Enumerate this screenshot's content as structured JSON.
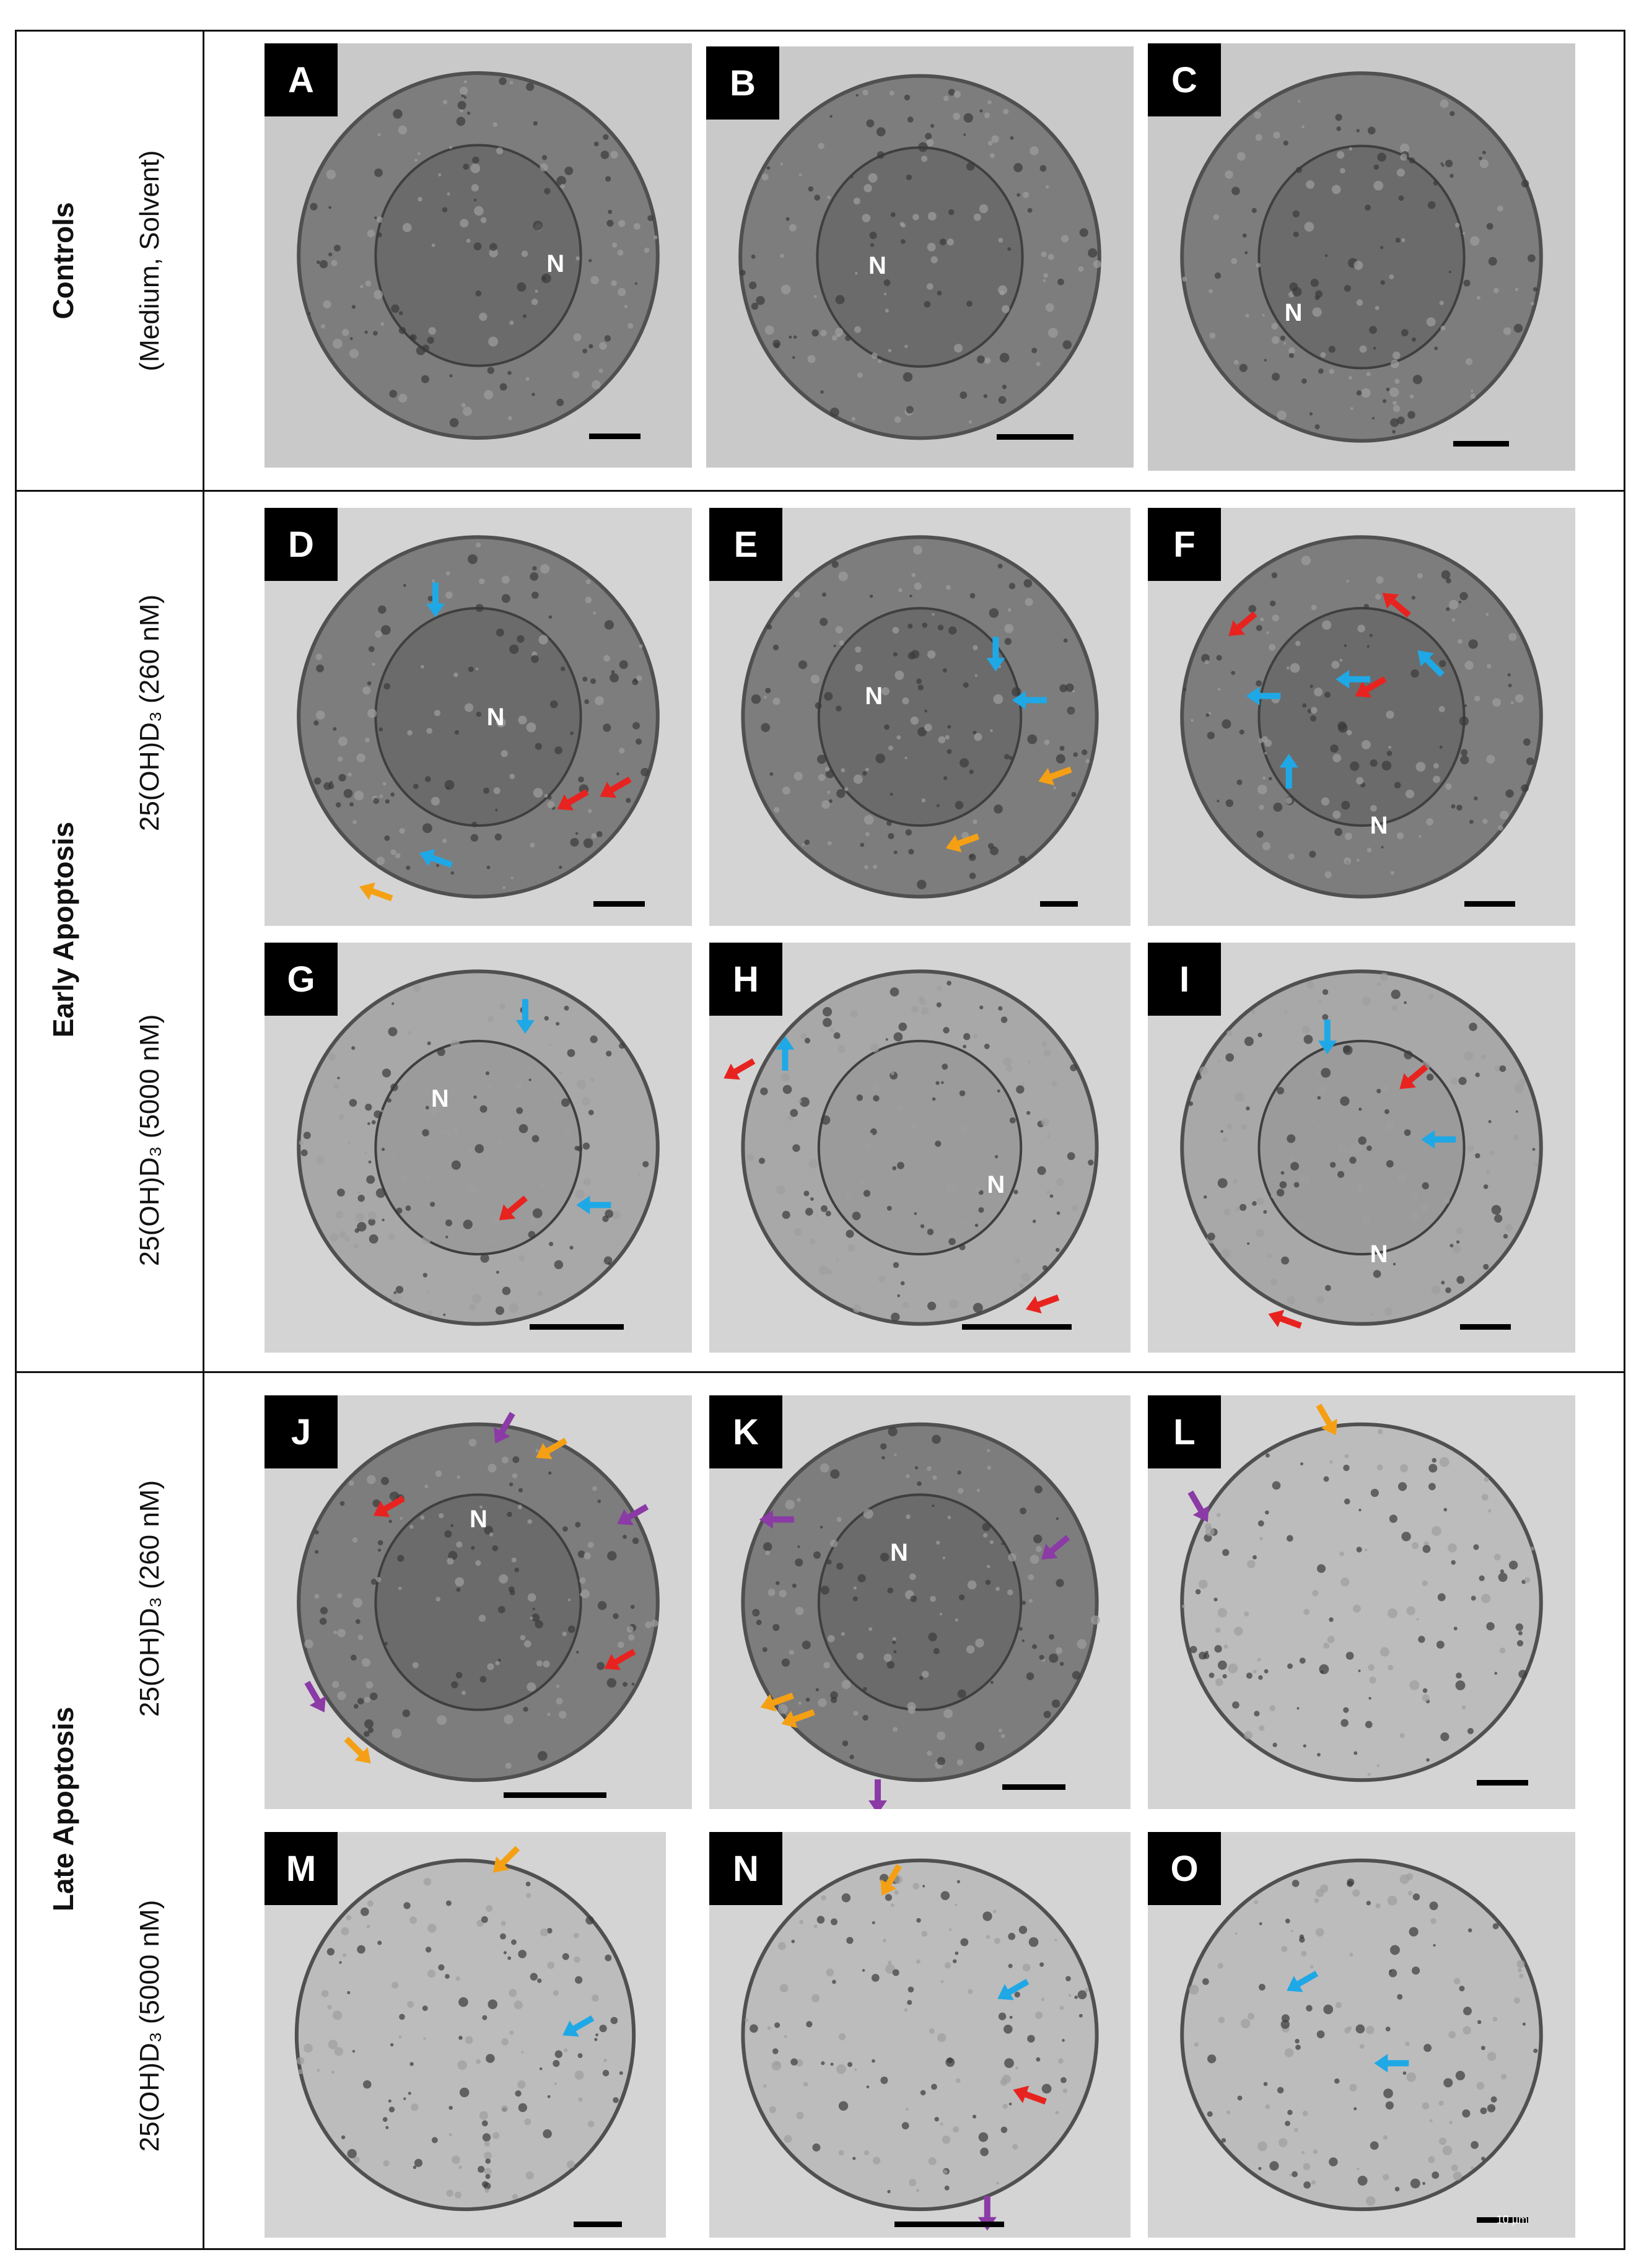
{
  "rows": [
    {
      "main": "Controls",
      "sub": "(Medium,  Solvent)"
    },
    {
      "main": "Early Apoptosis",
      "sub_a": "25(OH)D₃ (260 nM)",
      "sub_b": "25(OH)D₃ (5000 nM)"
    },
    {
      "main": "Late Apoptosis",
      "sub_a": "25(OH)D₃ (260 nM)",
      "sub_b": "25(OH)D₃ (5000 nM)"
    }
  ],
  "panels": [
    {
      "letter": "A",
      "nucleus": "N",
      "arrows": []
    },
    {
      "letter": "B",
      "nucleus": "N",
      "arrows": []
    },
    {
      "letter": "C",
      "nucleus": "N",
      "arrows": []
    },
    {
      "letter": "D",
      "nucleus": "N",
      "arrows": [
        "blue",
        "blue",
        "red",
        "red",
        "orange"
      ]
    },
    {
      "letter": "E",
      "nucleus": "N",
      "arrows": [
        "blue",
        "blue",
        "orange",
        "orange"
      ]
    },
    {
      "letter": "F",
      "nucleus": "N",
      "arrows": [
        "red",
        "red",
        "red",
        "blue",
        "blue",
        "blue",
        "blue"
      ]
    },
    {
      "letter": "G",
      "nucleus": "N",
      "arrows": [
        "blue",
        "red",
        "blue"
      ]
    },
    {
      "letter": "H",
      "nucleus": "N",
      "arrows": [
        "red",
        "blue",
        "red"
      ]
    },
    {
      "letter": "I",
      "nucleus": "N",
      "arrows": [
        "blue",
        "red",
        "blue",
        "red"
      ]
    },
    {
      "letter": "J",
      "nucleus": "N",
      "arrows": [
        "purple",
        "orange",
        "purple",
        "red",
        "red",
        "purple",
        "orange"
      ]
    },
    {
      "letter": "K",
      "nucleus": "N",
      "arrows": [
        "purple",
        "purple",
        "orange",
        "orange",
        "purple"
      ]
    },
    {
      "letter": "L",
      "nucleus": "",
      "arrows": [
        "orange",
        "purple"
      ]
    },
    {
      "letter": "M",
      "nucleus": "",
      "arrows": [
        "orange",
        "blue"
      ]
    },
    {
      "letter": "N",
      "nucleus": "",
      "arrows": [
        "orange",
        "blue",
        "red",
        "purple"
      ]
    },
    {
      "letter": "O",
      "nucleus": "",
      "arrows": [
        "blue",
        "blue"
      ],
      "scale_text": "10 µm"
    }
  ],
  "arrow_colors": {
    "blue": "#1fa8e6",
    "red": "#e8231f",
    "orange": "#f5a014",
    "purple": "#8b3aa6"
  }
}
